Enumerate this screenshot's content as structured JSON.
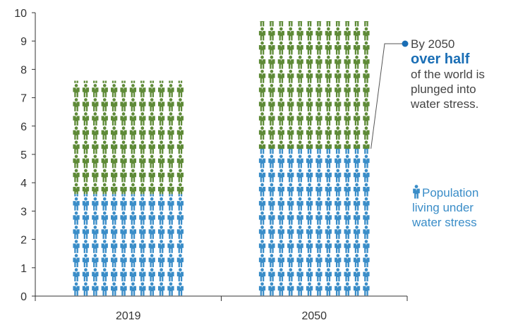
{
  "chart_data": {
    "type": "bar",
    "title": "",
    "xlabel": "",
    "ylabel": "",
    "ylim": [
      0,
      10
    ],
    "yticks": [
      "0",
      "1",
      "2",
      "3",
      "4",
      "5",
      "6",
      "7",
      "8",
      "9",
      "10"
    ],
    "categories": [
      "2019",
      "2050"
    ],
    "series": [
      {
        "name": "Population living under water stress",
        "values": [
          3.6,
          5.2
        ],
        "color": "#3a8dc8"
      },
      {
        "values": [
          4.0,
          4.5
        ],
        "color": "#5e8a37"
      }
    ],
    "totals": [
      7.6,
      9.7
    ],
    "grid": false,
    "legend_position": "right",
    "icon": "person-icon"
  },
  "annotation": {
    "line1": "By 2050",
    "emphasis": "over half",
    "line2": "of the world is",
    "line3": "plunged into",
    "line4": "water stress.",
    "emphasis_color": "#1a6eb5",
    "dot_color": "#1a6eb5"
  },
  "legend": {
    "icon": "person-icon",
    "line1": "Population",
    "line2": "living under",
    "line3": "water stress",
    "color": "#3a8dc8"
  }
}
